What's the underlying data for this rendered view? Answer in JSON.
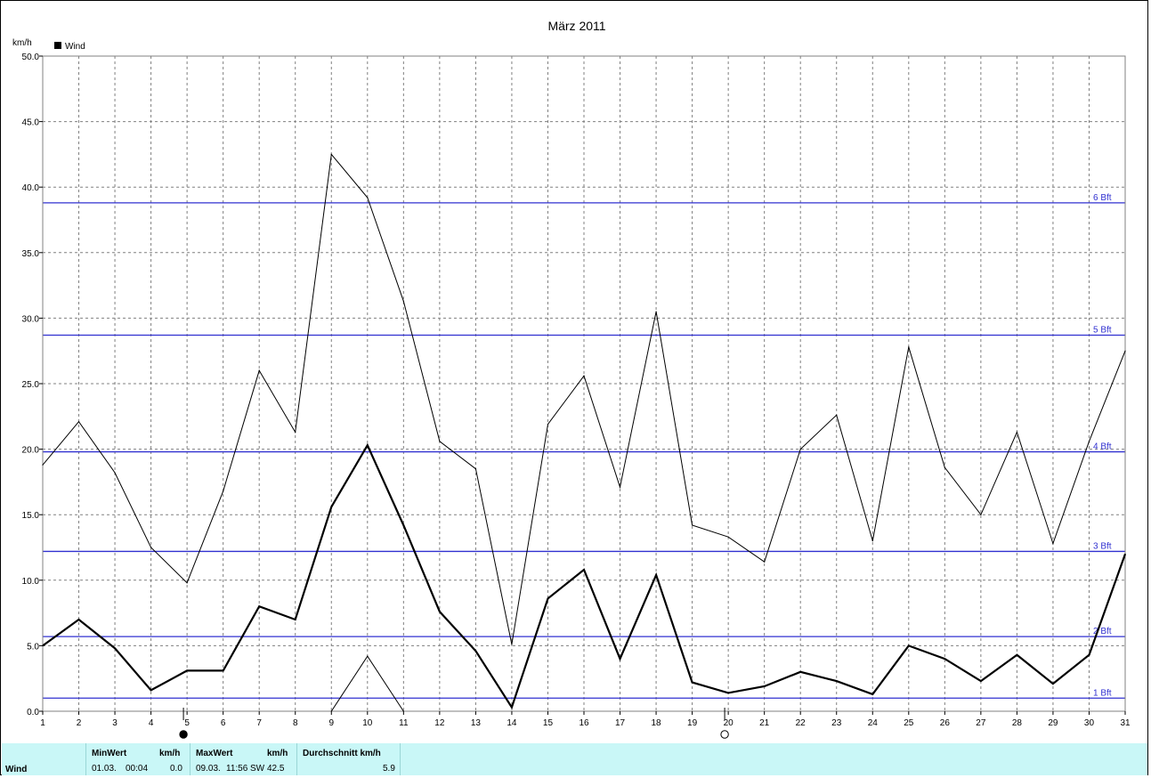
{
  "chart_data": {
    "type": "line",
    "title": "März 2011",
    "ylabel": "km/h",
    "xlabel": "",
    "legend": {
      "entries": [
        "Wind"
      ],
      "placement": "top-left"
    },
    "x": [
      1,
      2,
      3,
      4,
      5,
      6,
      7,
      8,
      9,
      10,
      11,
      12,
      13,
      14,
      15,
      16,
      17,
      18,
      19,
      20,
      21,
      22,
      23,
      24,
      25,
      26,
      27,
      28,
      29,
      30,
      31
    ],
    "xlim": [
      1,
      31
    ],
    "ylim": [
      0,
      50
    ],
    "yticks": [
      "0.0",
      "5.0",
      "10.0",
      "15.0",
      "20.0",
      "25.0",
      "30.0",
      "35.0",
      "40.0",
      "45.0",
      "50.0"
    ],
    "grid": true,
    "series": [
      {
        "name": "Wind",
        "role": "average",
        "color": "#000000",
        "values": [
          5.0,
          7.0,
          4.8,
          1.6,
          3.1,
          3.1,
          8.0,
          7.0,
          15.6,
          20.3,
          14.2,
          7.6,
          4.6,
          0.3,
          8.6,
          10.8,
          4.0,
          10.4,
          2.2,
          1.4,
          1.9,
          3.0,
          2.3,
          1.3,
          5.0,
          4.0,
          2.3,
          4.3,
          2.1,
          4.3,
          12.0
        ]
      },
      {
        "role": "maximum",
        "color": "#000000",
        "values": [
          18.8,
          22.1,
          18.2,
          12.5,
          9.8,
          16.8,
          26.0,
          21.3,
          42.5,
          39.2,
          31.3,
          20.6,
          18.5,
          5.1,
          21.9,
          25.6,
          17.1,
          30.5,
          14.2,
          13.3,
          11.4,
          20.0,
          22.6,
          13.0,
          27.8,
          18.6,
          15.0,
          21.3,
          12.8,
          20.6,
          27.5
        ]
      },
      {
        "role": "minimum",
        "color": "#000000",
        "x": [
          9,
          10,
          11
        ],
        "values": [
          0.0,
          4.2,
          0.0
        ]
      }
    ],
    "beaufort_lines": [
      {
        "label": "1 Bft",
        "value": 1.0
      },
      {
        "label": "2 Bft",
        "value": 5.7
      },
      {
        "label": "3 Bft",
        "value": 12.2
      },
      {
        "label": "4 Bft",
        "value": 19.8
      },
      {
        "label": "5 Bft",
        "value": 28.7
      },
      {
        "label": "6 Bft",
        "value": 38.8
      }
    ],
    "beaufort_color": "#3030d0",
    "moon_phases": [
      {
        "day": 4.9,
        "symbol": "new-moon"
      },
      {
        "day": 19.9,
        "symbol": "full-moon"
      }
    ]
  },
  "stats": {
    "row_label": "Wind",
    "min": {
      "header": "MinWert",
      "unit_header": "km/h",
      "date": "01.03.",
      "time": "00:04",
      "value": "0.0"
    },
    "max": {
      "header": "MaxWert",
      "unit_header": "km/h",
      "date": "09.03.",
      "time": "11:56",
      "direction": "SW",
      "value": "42.5"
    },
    "avg": {
      "header": "Durchschnitt km/h",
      "value": "5.9"
    }
  },
  "colors": {
    "stats_background": "#c9f7f7",
    "grid": "#808080",
    "frame": "#808080"
  }
}
